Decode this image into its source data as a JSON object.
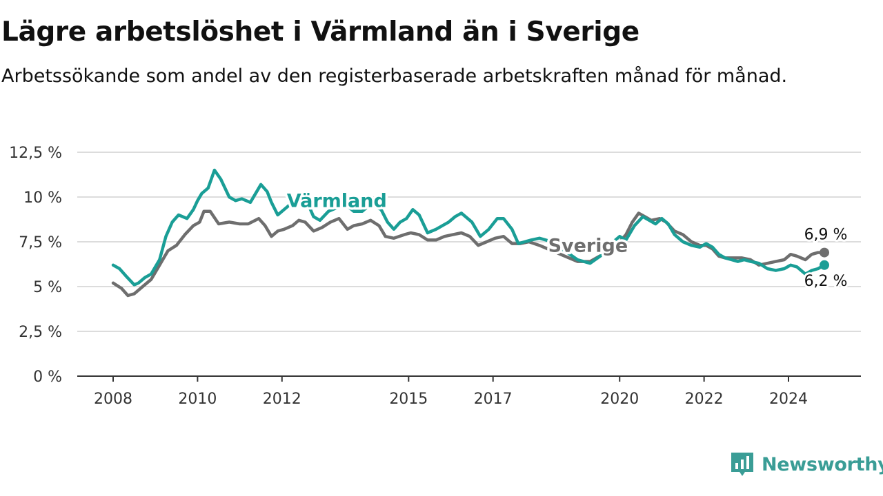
{
  "title": "Lägre arbetslöshet i Värmland än i Sverige",
  "subtitle": "Arbetssökande som andel av den registerbaserade arbetskraften månad för månad.",
  "brand": {
    "name": "Newsworthy",
    "icon": "newsworthy-logo-icon",
    "color": "#3a9d96"
  },
  "chart_data": {
    "type": "line",
    "title": "Lägre arbetslöshet i Värmland än i Sverige",
    "subtitle": "Arbetssökande som andel av den registerbaserade arbetskraften månad för månad.",
    "xlabel": "",
    "ylabel": "",
    "xlim": [
      2008,
      2025.5
    ],
    "ylim": [
      0,
      12.5
    ],
    "x_ticks": [
      {
        "value": 2008,
        "label": "2008"
      },
      {
        "value": 2010,
        "label": "2010"
      },
      {
        "value": 2012,
        "label": "2012"
      },
      {
        "value": 2015,
        "label": "2015"
      },
      {
        "value": 2017,
        "label": "2017"
      },
      {
        "value": 2020,
        "label": "2020"
      },
      {
        "value": 2022,
        "label": "2022"
      },
      {
        "value": 2024,
        "label": "2024"
      }
    ],
    "y_ticks": [
      {
        "value": 0,
        "label": "0 %"
      },
      {
        "value": 2.5,
        "label": "2,5 %"
      },
      {
        "value": 5,
        "label": "5 %"
      },
      {
        "value": 7.5,
        "label": "7,5 %"
      },
      {
        "value": 10,
        "label": "10 %"
      },
      {
        "value": 12.5,
        "label": "12,5 %"
      }
    ],
    "grid": true,
    "legend": "inline labels",
    "series": [
      {
        "name": "Värmland",
        "color": "#1a9e96",
        "x": [
          2008.0,
          2008.15,
          2008.3,
          2008.5,
          2008.6,
          2008.75,
          2008.9,
          2009.1,
          2009.25,
          2009.4,
          2009.55,
          2009.75,
          2009.9,
          2010.0,
          2010.1,
          2010.25,
          2010.4,
          2010.55,
          2010.75,
          2010.9,
          2011.05,
          2011.25,
          2011.5,
          2011.65,
          2011.75,
          2011.9,
          2012.05,
          2012.25,
          2012.4,
          2012.6,
          2012.75,
          2012.9,
          2013.1,
          2013.3,
          2013.5,
          2013.7,
          2013.9,
          2014.1,
          2014.35,
          2014.5,
          2014.65,
          2014.8,
          2014.95,
          2015.1,
          2015.25,
          2015.45,
          2015.65,
          2015.8,
          2015.95,
          2016.1,
          2016.25,
          2016.5,
          2016.7,
          2016.9,
          2017.1,
          2017.25,
          2017.45,
          2017.6,
          2017.75,
          2017.9,
          2018.1,
          2018.4,
          2018.7,
          2019.0,
          2019.3,
          2019.6,
          2019.8,
          2020.0,
          2020.15,
          2020.35,
          2020.55,
          2020.7,
          2020.85,
          2021.0,
          2021.15,
          2021.3,
          2021.5,
          2021.7,
          2021.9,
          2022.05,
          2022.2,
          2022.35,
          2022.5,
          2022.65,
          2022.8,
          2022.95,
          2023.1,
          2023.3,
          2023.5,
          2023.7,
          2023.9,
          2024.05,
          2024.2,
          2024.4,
          2024.55,
          2024.7,
          2024.85
        ],
        "y": [
          6.2,
          6.0,
          5.6,
          5.1,
          5.2,
          5.5,
          5.7,
          6.5,
          7.8,
          8.6,
          9.0,
          8.8,
          9.3,
          9.8,
          10.2,
          10.5,
          11.5,
          11.0,
          10.0,
          9.8,
          9.9,
          9.7,
          10.7,
          10.3,
          9.7,
          9.0,
          9.3,
          9.7,
          10.1,
          9.7,
          8.9,
          8.7,
          9.2,
          9.4,
          9.6,
          9.2,
          9.2,
          9.6,
          9.3,
          8.6,
          8.2,
          8.6,
          8.8,
          9.3,
          9.0,
          8.0,
          8.2,
          8.4,
          8.6,
          8.9,
          9.1,
          8.6,
          7.8,
          8.2,
          8.8,
          8.8,
          8.2,
          7.4,
          7.5,
          7.6,
          7.7,
          7.5,
          7.0,
          6.5,
          6.3,
          6.8,
          7.4,
          7.8,
          7.6,
          8.4,
          8.9,
          8.7,
          8.5,
          8.8,
          8.5,
          7.9,
          7.5,
          7.3,
          7.2,
          7.4,
          7.2,
          6.8,
          6.6,
          6.5,
          6.4,
          6.5,
          6.4,
          6.3,
          6.0,
          5.9,
          6.0,
          6.2,
          6.1,
          5.7,
          5.9,
          6.0,
          6.2
        ]
      },
      {
        "name": "Sverige",
        "color": "#6e6e6e",
        "x": [
          2008.0,
          2008.2,
          2008.35,
          2008.5,
          2008.7,
          2008.9,
          2009.1,
          2009.3,
          2009.5,
          2009.7,
          2009.9,
          2010.05,
          2010.15,
          2010.3,
          2010.5,
          2010.75,
          2011.0,
          2011.2,
          2011.45,
          2011.6,
          2011.75,
          2011.9,
          2012.05,
          2012.25,
          2012.4,
          2012.55,
          2012.75,
          2012.95,
          2013.15,
          2013.35,
          2013.55,
          2013.7,
          2013.9,
          2014.1,
          2014.3,
          2014.45,
          2014.65,
          2014.9,
          2015.05,
          2015.25,
          2015.45,
          2015.65,
          2015.85,
          2016.05,
          2016.25,
          2016.45,
          2016.65,
          2016.85,
          2017.05,
          2017.25,
          2017.45,
          2017.65,
          2017.85,
          2018.1,
          2018.4,
          2018.7,
          2019.0,
          2019.3,
          2019.6,
          2019.8,
          2020.0,
          2020.15,
          2020.3,
          2020.45,
          2020.6,
          2020.75,
          2020.95,
          2021.1,
          2021.3,
          2021.5,
          2021.7,
          2021.9,
          2022.05,
          2022.2,
          2022.35,
          2022.5,
          2022.7,
          2022.9,
          2023.1,
          2023.3,
          2023.5,
          2023.7,
          2023.9,
          2024.05,
          2024.2,
          2024.4,
          2024.55,
          2024.7,
          2024.85
        ],
        "y": [
          5.2,
          4.9,
          4.5,
          4.6,
          5.0,
          5.4,
          6.2,
          7.0,
          7.3,
          7.9,
          8.4,
          8.6,
          9.2,
          9.2,
          8.5,
          8.6,
          8.5,
          8.5,
          8.8,
          8.4,
          7.8,
          8.1,
          8.2,
          8.4,
          8.7,
          8.6,
          8.1,
          8.3,
          8.6,
          8.8,
          8.2,
          8.4,
          8.5,
          8.7,
          8.4,
          7.8,
          7.7,
          7.9,
          8.0,
          7.9,
          7.6,
          7.6,
          7.8,
          7.9,
          8.0,
          7.8,
          7.3,
          7.5,
          7.7,
          7.8,
          7.4,
          7.4,
          7.5,
          7.3,
          7.0,
          6.7,
          6.4,
          6.4,
          6.8,
          7.2,
          7.5,
          7.9,
          8.6,
          9.1,
          8.9,
          8.7,
          8.8,
          8.6,
          8.1,
          7.9,
          7.5,
          7.3,
          7.3,
          7.1,
          6.7,
          6.6,
          6.6,
          6.6,
          6.5,
          6.2,
          6.3,
          6.4,
          6.5,
          6.8,
          6.7,
          6.5,
          6.8,
          6.9,
          6.9
        ]
      }
    ],
    "series_labels": [
      {
        "series": "Värmland",
        "text": "Värmland",
        "x": 2013.3,
        "y": 9.45
      },
      {
        "series": "Sverige",
        "text": "Sverige",
        "x": 2019.25,
        "y": 6.95
      }
    ],
    "end_labels": [
      {
        "series": "Sverige",
        "text": "6,9 %",
        "x": 2024.85,
        "y": 6.9
      },
      {
        "series": "Värmland",
        "text": "6,2 %",
        "x": 2024.85,
        "y": 6.2
      }
    ]
  }
}
